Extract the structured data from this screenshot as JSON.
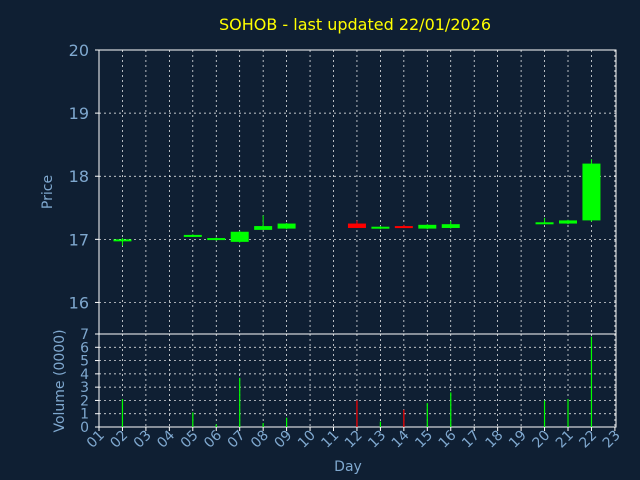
{
  "chart_data": {
    "type": "candlestick",
    "title": "SOHOB - last updated 22/01/2026",
    "xlabel": "Day",
    "ylabel_price": "Price",
    "ylabel_volume": "Volume (0000)",
    "x_ticks": [
      "01",
      "02",
      "03",
      "04",
      "05",
      "06",
      "07",
      "08",
      "09",
      "10",
      "11",
      "12",
      "13",
      "14",
      "15",
      "16",
      "17",
      "18",
      "19",
      "20",
      "21",
      "22",
      "23"
    ],
    "price_ylim": [
      15.5,
      20
    ],
    "price_ticks": [
      "16",
      "17",
      "18",
      "19",
      "20"
    ],
    "volume_ylim": [
      0,
      7
    ],
    "volume_ticks": [
      "0",
      "1",
      "2",
      "3",
      "4",
      "5",
      "6",
      "7"
    ],
    "colors": {
      "up": "#00ff00",
      "down": "#ff0000",
      "grid": "#ffffff",
      "frame": "#ffffff",
      "background": "#0f1f33"
    },
    "grid": true,
    "candles": [
      {
        "day": "02",
        "open": 16.97,
        "close": 17.0,
        "high": 17.02,
        "low": 16.9
      },
      {
        "day": "05",
        "open": 17.05,
        "close": 17.07,
        "high": 17.08,
        "low": 17.04
      },
      {
        "day": "06",
        "open": 16.99,
        "close": 17.02,
        "high": 17.03,
        "low": 16.98
      },
      {
        "day": "07",
        "open": 16.96,
        "close": 17.12,
        "high": 17.13,
        "low": 16.95
      },
      {
        "day": "08",
        "open": 17.15,
        "close": 17.21,
        "high": 17.38,
        "low": 17.15
      },
      {
        "day": "09",
        "open": 17.17,
        "close": 17.25,
        "high": 17.26,
        "low": 17.16
      },
      {
        "day": "12",
        "open": 17.25,
        "close": 17.18,
        "high": 17.3,
        "low": 17.18
      },
      {
        "day": "13",
        "open": 17.17,
        "close": 17.2,
        "high": 17.21,
        "low": 17.16
      },
      {
        "day": "14",
        "open": 17.21,
        "close": 17.18,
        "high": 17.23,
        "low": 17.18
      },
      {
        "day": "15",
        "open": 17.17,
        "close": 17.23,
        "high": 17.24,
        "low": 17.16
      },
      {
        "day": "16",
        "open": 17.18,
        "close": 17.24,
        "high": 17.29,
        "low": 17.17
      },
      {
        "day": "20",
        "open": 17.25,
        "close": 17.27,
        "high": 17.34,
        "low": 17.24
      },
      {
        "day": "21",
        "open": 17.25,
        "close": 17.3,
        "high": 17.31,
        "low": 17.24
      },
      {
        "day": "22",
        "open": 17.3,
        "close": 18.2,
        "high": 18.27,
        "low": 17.28
      }
    ],
    "volume": [
      {
        "day": "02",
        "value": 2.1,
        "direction": "up"
      },
      {
        "day": "05",
        "value": 1.1,
        "direction": "up"
      },
      {
        "day": "06",
        "value": 0.2,
        "direction": "up"
      },
      {
        "day": "07",
        "value": 3.7,
        "direction": "up"
      },
      {
        "day": "08",
        "value": 0.3,
        "direction": "up"
      },
      {
        "day": "09",
        "value": 0.7,
        "direction": "up"
      },
      {
        "day": "12",
        "value": 2.0,
        "direction": "down"
      },
      {
        "day": "13",
        "value": 0.4,
        "direction": "up"
      },
      {
        "day": "14",
        "value": 1.3,
        "direction": "down"
      },
      {
        "day": "15",
        "value": 1.8,
        "direction": "up"
      },
      {
        "day": "16",
        "value": 2.6,
        "direction": "up"
      },
      {
        "day": "20",
        "value": 2.0,
        "direction": "up"
      },
      {
        "day": "21",
        "value": 2.1,
        "direction": "up"
      },
      {
        "day": "22",
        "value": 6.8,
        "direction": "up"
      }
    ]
  }
}
